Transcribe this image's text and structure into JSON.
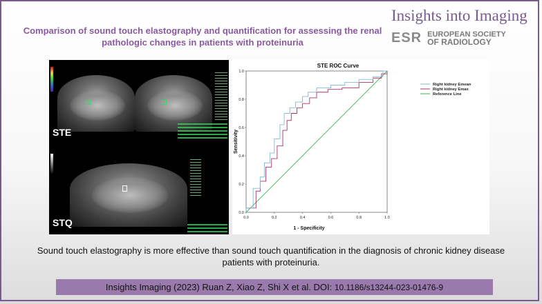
{
  "brand": {
    "journal": "Insights into Imaging",
    "logo_mark": "ESR",
    "society_line1": "EUROPEAN SOCIETY",
    "society_line2": "OF RADIOLOGY"
  },
  "headline": "Comparison of sound touch elastography and quantification for assessing the renal pathologic changes in patients with proteinuria",
  "images": {
    "ste_label": "STE",
    "stq_label": "STQ"
  },
  "chart_data": {
    "type": "line",
    "title": "STE  ROC Curve",
    "xlabel": "1 - Specificity",
    "ylabel": "Sensitivity",
    "xlim": [
      0,
      1
    ],
    "ylim": [
      0,
      1
    ],
    "x_ticks": [
      "0.0",
      "0.2",
      "0.4",
      "0.6",
      "0.8",
      "1.0"
    ],
    "y_ticks": [
      "0.0",
      "0.2",
      "0.4",
      "0.6",
      "0.8",
      "1.0"
    ],
    "legend_position": "right",
    "series": [
      {
        "name": "Right kidney Emean",
        "color": "#86b7d6",
        "points": [
          [
            0,
            0
          ],
          [
            0,
            0.03
          ],
          [
            0.05,
            0.03
          ],
          [
            0.05,
            0.17
          ],
          [
            0.1,
            0.17
          ],
          [
            0.1,
            0.25
          ],
          [
            0.13,
            0.25
          ],
          [
            0.13,
            0.35
          ],
          [
            0.17,
            0.35
          ],
          [
            0.17,
            0.42
          ],
          [
            0.2,
            0.42
          ],
          [
            0.2,
            0.52
          ],
          [
            0.24,
            0.52
          ],
          [
            0.24,
            0.62
          ],
          [
            0.27,
            0.62
          ],
          [
            0.27,
            0.7
          ],
          [
            0.31,
            0.7
          ],
          [
            0.31,
            0.74
          ],
          [
            0.35,
            0.74
          ],
          [
            0.35,
            0.78
          ],
          [
            0.4,
            0.78
          ],
          [
            0.4,
            0.82
          ],
          [
            0.44,
            0.82
          ],
          [
            0.44,
            0.85
          ],
          [
            0.5,
            0.85
          ],
          [
            0.5,
            0.88
          ],
          [
            0.6,
            0.88
          ],
          [
            0.6,
            0.9
          ],
          [
            0.7,
            0.9
          ],
          [
            0.7,
            0.92
          ],
          [
            0.8,
            0.92
          ],
          [
            0.8,
            0.94
          ],
          [
            0.9,
            0.94
          ],
          [
            0.9,
            0.96
          ],
          [
            0.97,
            0.96
          ],
          [
            0.97,
            1
          ],
          [
            1,
            1
          ]
        ]
      },
      {
        "name": "Right kidney Emax",
        "color": "#b0306a",
        "points": [
          [
            0,
            0
          ],
          [
            0,
            0.03
          ],
          [
            0.07,
            0.03
          ],
          [
            0.07,
            0.15
          ],
          [
            0.1,
            0.15
          ],
          [
            0.1,
            0.22
          ],
          [
            0.14,
            0.22
          ],
          [
            0.14,
            0.32
          ],
          [
            0.18,
            0.32
          ],
          [
            0.18,
            0.38
          ],
          [
            0.22,
            0.38
          ],
          [
            0.22,
            0.47
          ],
          [
            0.26,
            0.47
          ],
          [
            0.26,
            0.58
          ],
          [
            0.29,
            0.58
          ],
          [
            0.29,
            0.65
          ],
          [
            0.32,
            0.65
          ],
          [
            0.32,
            0.7
          ],
          [
            0.36,
            0.7
          ],
          [
            0.36,
            0.74
          ],
          [
            0.4,
            0.74
          ],
          [
            0.4,
            0.77
          ],
          [
            0.45,
            0.77
          ],
          [
            0.45,
            0.81
          ],
          [
            0.5,
            0.81
          ],
          [
            0.5,
            0.85
          ],
          [
            0.58,
            0.85
          ],
          [
            0.58,
            0.87
          ],
          [
            0.68,
            0.87
          ],
          [
            0.68,
            0.88
          ],
          [
            0.8,
            0.88
          ],
          [
            0.8,
            0.92
          ],
          [
            0.9,
            0.92
          ],
          [
            0.9,
            0.95
          ],
          [
            0.96,
            0.95
          ],
          [
            0.96,
            0.98
          ],
          [
            1,
            0.98
          ],
          [
            1,
            1
          ]
        ]
      },
      {
        "name": "Reference Line",
        "color": "#3cb34a",
        "points": [
          [
            0,
            0
          ],
          [
            1,
            1
          ]
        ]
      }
    ]
  },
  "conclusion": "Sound touch elastography is more effective than sound touch quantification in the diagnosis of chronic kidney disease patients with proteinuria.",
  "citation": {
    "text": "Insights Imaging (2023) Ruan Z, Xiao Z, Shi X et al. DOI: ",
    "doi": "10.1186/s13244-023-01476-9"
  }
}
